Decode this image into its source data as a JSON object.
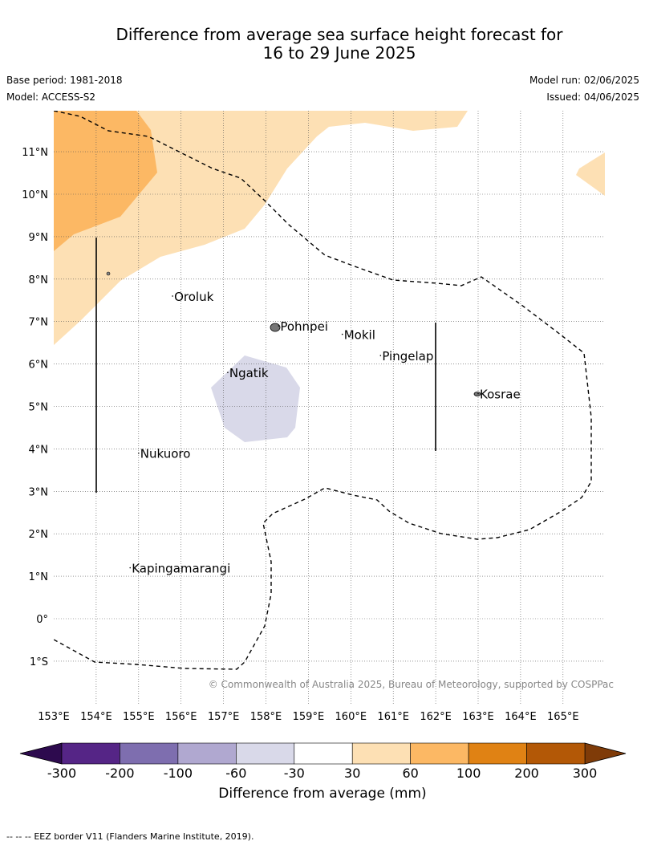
{
  "header": {
    "title_line1": "Difference from average sea surface height forecast for",
    "title_line2": "16 to 29 June 2025",
    "base_period": "Base period: 1981-2018",
    "model": "Model: ACCESS-S2",
    "model_run": "Model run: 02/06/2025",
    "issued": "Issued: 04/06/2025"
  },
  "map": {
    "lon_range": [
      153,
      166
    ],
    "lat_range": [
      -2,
      12
    ],
    "lon_ticks": [
      "153°E",
      "154°E",
      "155°E",
      "156°E",
      "157°E",
      "158°E",
      "159°E",
      "160°E",
      "161°E",
      "162°E",
      "163°E",
      "164°E",
      "165°E"
    ],
    "lat_ticks": [
      "11°N",
      "10°N",
      "9°N",
      "8°N",
      "7°N",
      "6°N",
      "5°N",
      "4°N",
      "3°N",
      "2°N",
      "1°N",
      "0°",
      "1°S"
    ],
    "places": [
      {
        "name": "Oroluk",
        "lon": 155.8,
        "lat": 7.6
      },
      {
        "name": "Pohnpei",
        "lon": 158.3,
        "lat": 6.9
      },
      {
        "name": "Mokil",
        "lon": 159.8,
        "lat": 6.7
      },
      {
        "name": "Pingelap",
        "lon": 160.7,
        "lat": 6.2
      },
      {
        "name": "Ngatik",
        "lon": 157.1,
        "lat": 5.8
      },
      {
        "name": "Kosrae",
        "lon": 163.0,
        "lat": 5.3
      },
      {
        "name": "Nukuoro",
        "lon": 155.0,
        "lat": 3.9
      },
      {
        "name": "Kapingamarangi",
        "lon": 154.8,
        "lat": 1.2
      }
    ],
    "copyright": "© Commonwealth of Australia 2025, Bureau of Meteorology, supported by COSPPac",
    "colors": {
      "light_orange": "#fde0b4",
      "mid_orange": "#fcb864",
      "light_purple": "#d9d9e9"
    }
  },
  "colorbar": {
    "ticks": [
      "-300",
      "-200",
      "-100",
      "-60",
      "-30",
      "30",
      "60",
      "100",
      "200",
      "300"
    ],
    "colors": [
      "#552586",
      "#7e6eaf",
      "#b0a8d0",
      "#d9d9e9",
      "#ffffff",
      "#fde0b4",
      "#fcb864",
      "#e08214",
      "#b35806"
    ],
    "under_color": "#2d0a4e",
    "over_color": "#7f3b08",
    "label": "Difference from average (mm)"
  },
  "footer": {
    "legend_symbol": "-- -- --",
    "legend_text": "EEZ border V11 (Flanders Marine Institute, 2019)."
  }
}
